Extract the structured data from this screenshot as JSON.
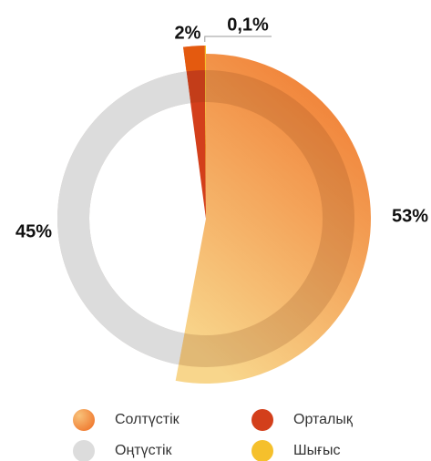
{
  "chart_data": {
    "type": "pie",
    "series": [
      {
        "name": "Солтүстік",
        "color": "#f0893a",
        "values": [
          53
        ],
        "value_labels": [
          "53%"
        ]
      },
      {
        "name": "Оңтүстік",
        "color": "#dcdcdc",
        "values": [
          45
        ],
        "value_labels": [
          "45%"
        ]
      },
      {
        "name": "Орталық",
        "color": "#d33f1b",
        "values": [
          2
        ],
        "value_labels": [
          "2%"
        ]
      },
      {
        "name": "Шығыс",
        "color": "#f5c02c",
        "values": [
          0.1
        ],
        "value_labels": [
          "0,1%"
        ]
      }
    ]
  }
}
